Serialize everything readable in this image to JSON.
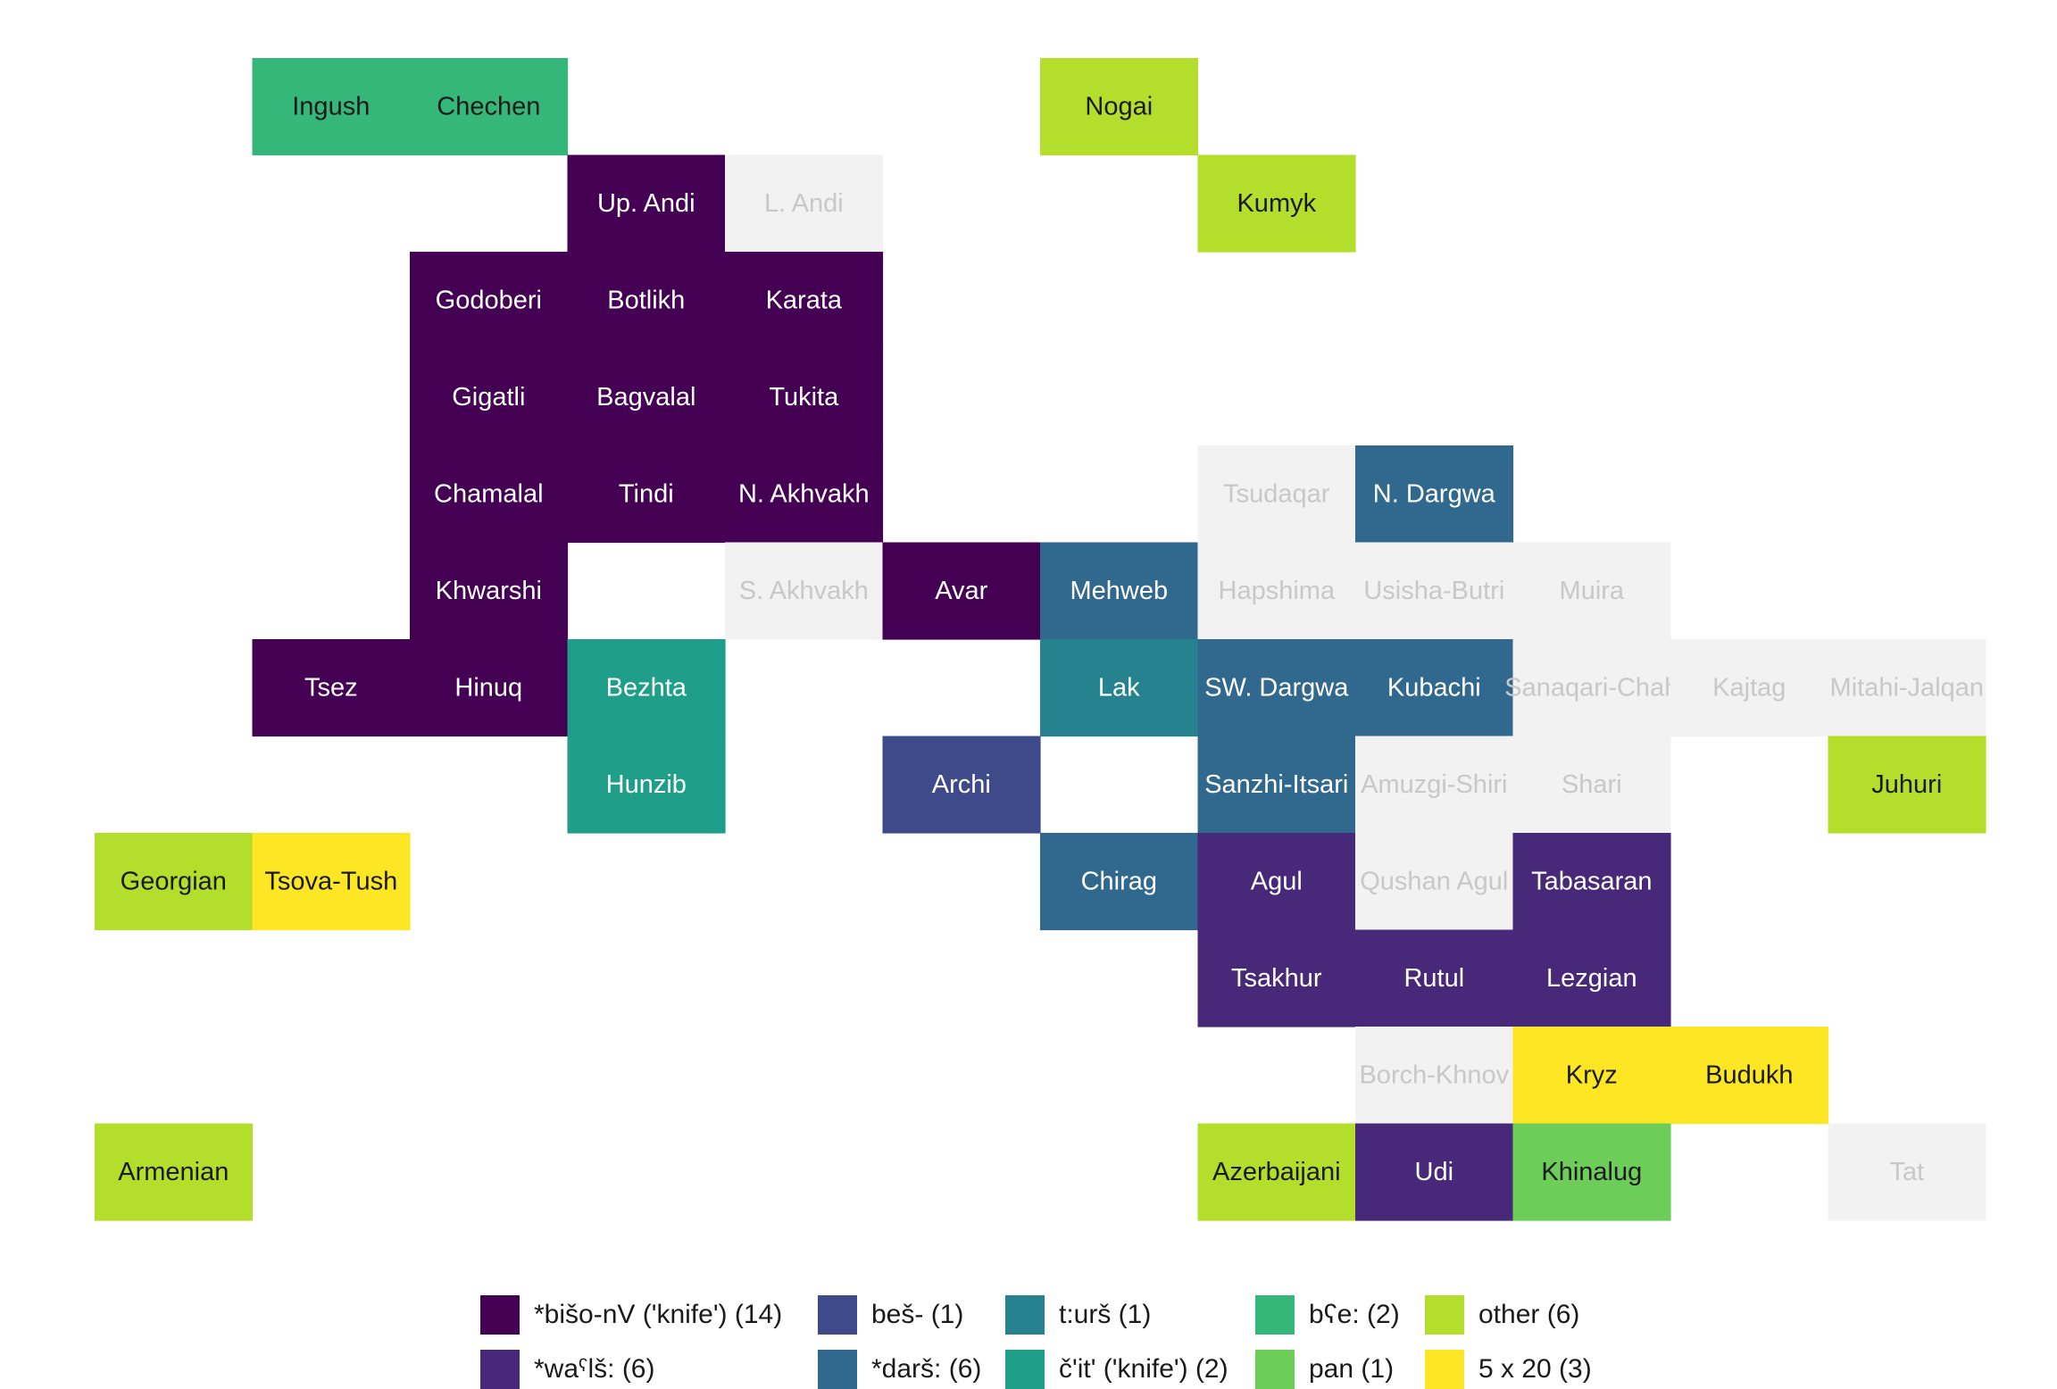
{
  "chart_data": {
    "type": "heatmap",
    "title": "",
    "xlabel": "",
    "ylabel": "",
    "axes_visible": false,
    "grid": false,
    "legend_position": "bottom",
    "categories": [
      {
        "id": "bisho",
        "label": "*bišo-nV ('knife') (14)",
        "color": "#440154",
        "text_color": "#ffffff"
      },
      {
        "id": "wals",
        "label": "*waˁlš: (6)",
        "color": "#482878",
        "text_color": "#ffffff"
      },
      {
        "id": "besh",
        "label": "beš- (1)",
        "color": "#3E4A89",
        "text_color": "#ffffff"
      },
      {
        "id": "darsh",
        "label": "*darš: (6)",
        "color": "#31688E",
        "text_color": "#ffffff"
      },
      {
        "id": "tursh",
        "label": "t:urš (1)",
        "color": "#26828E",
        "text_color": "#ffffff"
      },
      {
        "id": "chit",
        "label": "č'it' ('knife') (2)",
        "color": "#1F9E89",
        "text_color": "#ffffff"
      },
      {
        "id": "bae",
        "label": "bʕe: (2)",
        "color": "#35B779",
        "text_color": "#1a1a1a"
      },
      {
        "id": "pan",
        "label": "pan (1)",
        "color": "#6DCD59",
        "text_color": "#1a1a1a"
      },
      {
        "id": "other",
        "label": "other (6)",
        "color": "#B4DE2C",
        "text_color": "#1a1a1a"
      },
      {
        "id": "fivex20",
        "label": "5 x 20 (3)",
        "color": "#FDE725",
        "text_color": "#1a1a1a"
      },
      {
        "id": "na",
        "label": "",
        "color": "#F2F2F2",
        "text_color": "#c8c8c8"
      }
    ],
    "cells": [
      {
        "language": "Ingush",
        "col": 2,
        "row": 1,
        "category": "bae"
      },
      {
        "language": "Chechen",
        "col": 3,
        "row": 1,
        "category": "bae"
      },
      {
        "language": "Nogai",
        "col": 7,
        "row": 1,
        "category": "other"
      },
      {
        "language": "Up. Andi",
        "col": 4,
        "row": 2,
        "category": "bisho"
      },
      {
        "language": "L. Andi",
        "col": 5,
        "row": 2,
        "category": "na"
      },
      {
        "language": "Kumyk",
        "col": 8,
        "row": 2,
        "category": "other"
      },
      {
        "language": "Godoberi",
        "col": 3,
        "row": 3,
        "category": "bisho"
      },
      {
        "language": "Botlikh",
        "col": 4,
        "row": 3,
        "category": "bisho"
      },
      {
        "language": "Karata",
        "col": 5,
        "row": 3,
        "category": "bisho"
      },
      {
        "language": "Gigatli",
        "col": 3,
        "row": 4,
        "category": "bisho"
      },
      {
        "language": "Bagvalal",
        "col": 4,
        "row": 4,
        "category": "bisho"
      },
      {
        "language": "Tukita",
        "col": 5,
        "row": 4,
        "category": "bisho"
      },
      {
        "language": "Chamalal",
        "col": 3,
        "row": 5,
        "category": "bisho"
      },
      {
        "language": "Tindi",
        "col": 4,
        "row": 5,
        "category": "bisho"
      },
      {
        "language": "N. Akhvakh",
        "col": 5,
        "row": 5,
        "category": "bisho"
      },
      {
        "language": "Tsudaqar",
        "col": 8,
        "row": 5,
        "category": "na"
      },
      {
        "language": "N. Dargwa",
        "col": 9,
        "row": 5,
        "category": "darsh"
      },
      {
        "language": "Khwarshi",
        "col": 3,
        "row": 6,
        "category": "bisho"
      },
      {
        "language": "S. Akhvakh",
        "col": 5,
        "row": 6,
        "category": "na"
      },
      {
        "language": "Avar",
        "col": 6,
        "row": 6,
        "category": "bisho"
      },
      {
        "language": "Mehweb",
        "col": 7,
        "row": 6,
        "category": "darsh"
      },
      {
        "language": "Hapshima",
        "col": 8,
        "row": 6,
        "category": "na"
      },
      {
        "language": "Usisha-Butri",
        "col": 9,
        "row": 6,
        "category": "na"
      },
      {
        "language": "Muira",
        "col": 10,
        "row": 6,
        "category": "na"
      },
      {
        "language": "Tsez",
        "col": 2,
        "row": 7,
        "category": "bisho"
      },
      {
        "language": "Hinuq",
        "col": 3,
        "row": 7,
        "category": "bisho"
      },
      {
        "language": "Bezhta",
        "col": 4,
        "row": 7,
        "category": "chit"
      },
      {
        "language": "Lak",
        "col": 7,
        "row": 7,
        "category": "tursh"
      },
      {
        "language": "SW. Dargwa",
        "col": 8,
        "row": 7,
        "category": "darsh"
      },
      {
        "language": "Kubachi",
        "col": 9,
        "row": 7,
        "category": "darsh"
      },
      {
        "language": "Sanaqari-Chah",
        "col": 10,
        "row": 7,
        "category": "na"
      },
      {
        "language": "Kajtag",
        "col": 11,
        "row": 7,
        "category": "na"
      },
      {
        "language": "Mitahi-Jalqan",
        "col": 12,
        "row": 7,
        "category": "na"
      },
      {
        "language": "Hunzib",
        "col": 4,
        "row": 8,
        "category": "chit"
      },
      {
        "language": "Archi",
        "col": 6,
        "row": 8,
        "category": "besh"
      },
      {
        "language": "Sanzhi-Itsari",
        "col": 8,
        "row": 8,
        "category": "darsh"
      },
      {
        "language": "Amuzgi-Shiri",
        "col": 9,
        "row": 8,
        "category": "na"
      },
      {
        "language": "Shari",
        "col": 10,
        "row": 8,
        "category": "na"
      },
      {
        "language": "Juhuri",
        "col": 12,
        "row": 8,
        "category": "other"
      },
      {
        "language": "Georgian",
        "col": 1,
        "row": 9,
        "category": "other"
      },
      {
        "language": "Tsova-Tush",
        "col": 2,
        "row": 9,
        "category": "fivex20"
      },
      {
        "language": "Chirag",
        "col": 7,
        "row": 9,
        "category": "darsh"
      },
      {
        "language": "Agul",
        "col": 8,
        "row": 9,
        "category": "wals"
      },
      {
        "language": "Qushan Agul",
        "col": 9,
        "row": 9,
        "category": "na"
      },
      {
        "language": "Tabasaran",
        "col": 10,
        "row": 9,
        "category": "wals"
      },
      {
        "language": "Tsakhur",
        "col": 8,
        "row": 10,
        "category": "wals"
      },
      {
        "language": "Rutul",
        "col": 9,
        "row": 10,
        "category": "wals"
      },
      {
        "language": "Lezgian",
        "col": 10,
        "row": 10,
        "category": "wals"
      },
      {
        "language": "Borch-Khnov",
        "col": 9,
        "row": 11,
        "category": "na"
      },
      {
        "language": "Kryz",
        "col": 10,
        "row": 11,
        "category": "fivex20"
      },
      {
        "language": "Budukh",
        "col": 11,
        "row": 11,
        "category": "fivex20"
      },
      {
        "language": "Armenian",
        "col": 1,
        "row": 12,
        "category": "other"
      },
      {
        "language": "Azerbaijani",
        "col": 8,
        "row": 12,
        "category": "other"
      },
      {
        "language": "Udi",
        "col": 9,
        "row": 12,
        "category": "wals"
      },
      {
        "language": "Khinalug",
        "col": 10,
        "row": 12,
        "category": "pan"
      },
      {
        "language": "Tat",
        "col": 12,
        "row": 12,
        "category": "na"
      }
    ]
  },
  "legend": {
    "items": [
      {
        "category": "bisho",
        "label": "*bišo-nV ('knife') (14)"
      },
      {
        "category": "wals",
        "label": "*waˁlš: (6)"
      },
      {
        "category": "besh",
        "label": "beš- (1)"
      },
      {
        "category": "darsh",
        "label": "*darš: (6)"
      },
      {
        "category": "tursh",
        "label": "t:urš (1)"
      },
      {
        "category": "chit",
        "label": "č'it' ('knife') (2)"
      },
      {
        "category": "bae",
        "label": "bʕe: (2)"
      },
      {
        "category": "pan",
        "label": "pan (1)"
      },
      {
        "category": "other",
        "label": "other (6)"
      },
      {
        "category": "fivex20",
        "label": "5 x 20 (3)"
      }
    ]
  }
}
